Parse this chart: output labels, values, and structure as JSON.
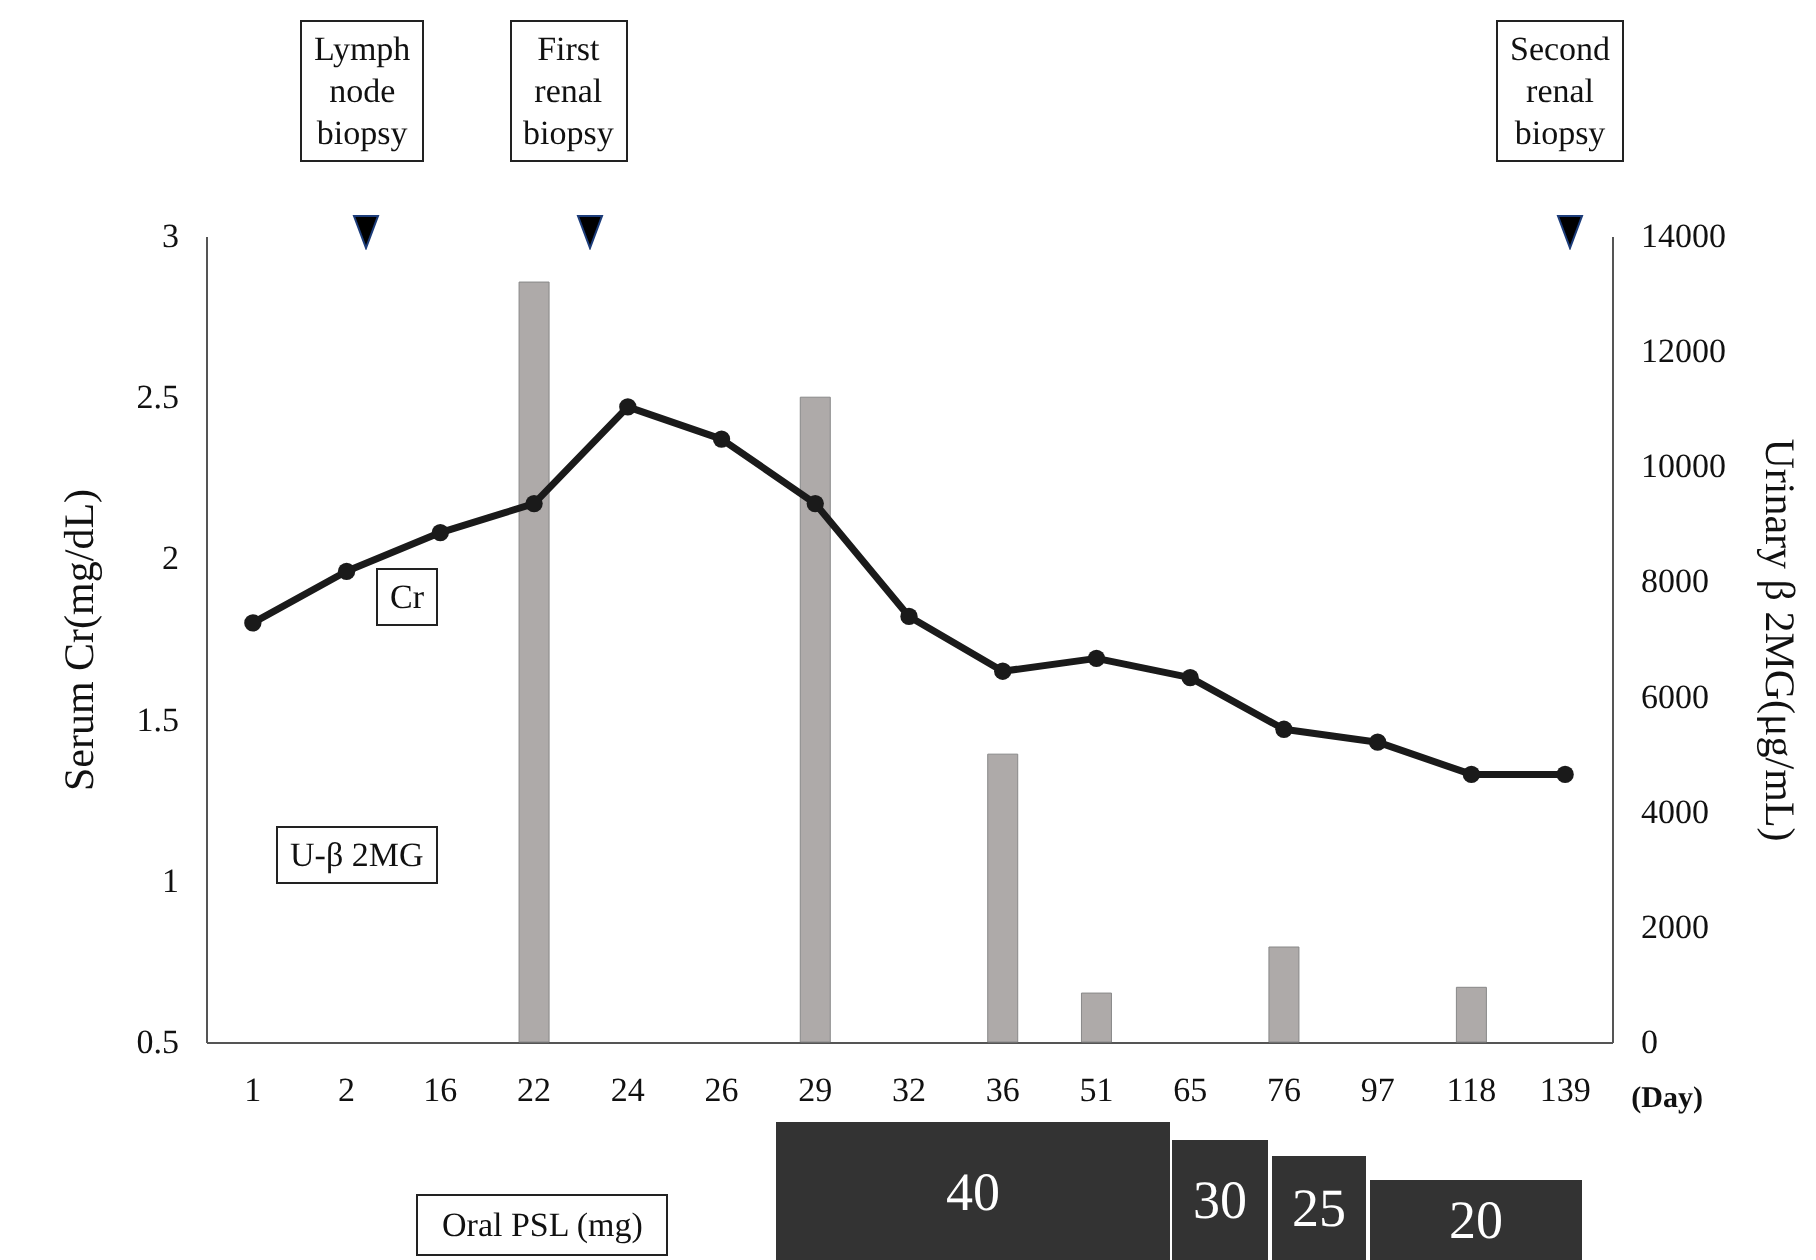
{
  "chart_data": {
    "type": "line",
    "xlabel": "(Day)",
    "ylabel": "Serum Cr(mg/dL)",
    "y2label": "Urinary β 2MG(μg/mL)",
    "categories": [
      "1",
      "2",
      "16",
      "22",
      "24",
      "26",
      "29",
      "32",
      "36",
      "51",
      "65",
      "76",
      "97",
      "118",
      "139"
    ],
    "series": [
      {
        "name": "U-β 2MG",
        "type": "bar",
        "axis": "y2",
        "color": "#aeaaa9",
        "values": [
          null,
          null,
          null,
          13200,
          null,
          null,
          11200,
          null,
          5000,
          850,
          null,
          1650,
          null,
          950,
          null
        ]
      },
      {
        "name": "Cr",
        "color": "#1a1a1a",
        "values": [
          1.8,
          1.96,
          2.08,
          2.17,
          2.47,
          2.37,
          2.17,
          1.82,
          1.65,
          1.69,
          1.63,
          1.47,
          1.43,
          1.33,
          1.33
        ]
      }
    ],
    "ylim": [
      0.5,
      3
    ],
    "yticks": [
      0.5,
      1,
      1.5,
      2,
      2.5,
      3
    ],
    "y2lim": [
      0,
      14000
    ],
    "y2ticks": [
      0,
      2000,
      4000,
      6000,
      8000,
      10000,
      12000,
      14000
    ],
    "grid": false,
    "marker": "circle",
    "line_style": "solid",
    "annotations": [
      "Lymph node biopsy",
      "First renal biopsy",
      "Second renal biopsy",
      "Oral PSL (mg)",
      "40",
      "30",
      "25",
      "20"
    ]
  }
}
